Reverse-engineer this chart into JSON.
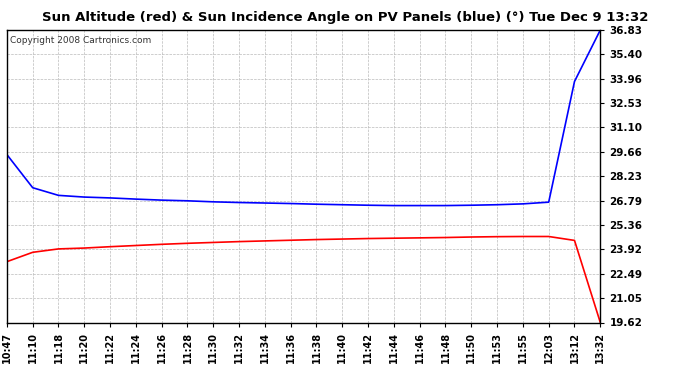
{
  "title": "Sun Altitude (red) & Sun Incidence Angle on PV Panels (blue) (°) Tue Dec 9 13:32",
  "copyright": "Copyright 2008 Cartronics.com",
  "background_color": "#ffffff",
  "plot_bg_color": "#ffffff",
  "grid_color": "#bbbbbb",
  "x_labels": [
    "10:47",
    "11:10",
    "11:18",
    "11:20",
    "11:22",
    "11:24",
    "11:26",
    "11:28",
    "11:30",
    "11:32",
    "11:34",
    "11:36",
    "11:38",
    "11:40",
    "11:42",
    "11:44",
    "11:46",
    "11:48",
    "11:50",
    "11:53",
    "11:55",
    "12:03",
    "13:12",
    "13:32"
  ],
  "y_min": 19.62,
  "y_max": 36.83,
  "y_ticks": [
    36.83,
    35.4,
    33.96,
    32.53,
    31.1,
    29.66,
    28.23,
    26.79,
    25.36,
    23.92,
    22.49,
    21.05,
    19.62
  ],
  "blue_line_color": "#0000ff",
  "red_line_color": "#ff0000",
  "blue_x": [
    0,
    1,
    2,
    3,
    4,
    5,
    6,
    7,
    8,
    9,
    10,
    11,
    12,
    13,
    14,
    15,
    16,
    17,
    18,
    19,
    20,
    21,
    22,
    23
  ],
  "blue_y": [
    29.5,
    27.55,
    27.1,
    27.0,
    26.95,
    26.88,
    26.82,
    26.78,
    26.72,
    26.68,
    26.65,
    26.62,
    26.58,
    26.55,
    26.52,
    26.5,
    26.5,
    26.5,
    26.52,
    26.55,
    26.6,
    26.7,
    33.8,
    36.83
  ],
  "red_x": [
    0,
    1,
    2,
    3,
    4,
    5,
    6,
    7,
    8,
    9,
    10,
    11,
    12,
    13,
    14,
    15,
    16,
    17,
    18,
    19,
    20,
    21,
    22,
    23
  ],
  "red_y": [
    23.2,
    23.75,
    23.95,
    24.0,
    24.08,
    24.15,
    24.22,
    24.28,
    24.33,
    24.38,
    24.42,
    24.46,
    24.5,
    24.53,
    24.56,
    24.58,
    24.6,
    24.62,
    24.65,
    24.67,
    24.68,
    24.68,
    24.45,
    19.62
  ]
}
